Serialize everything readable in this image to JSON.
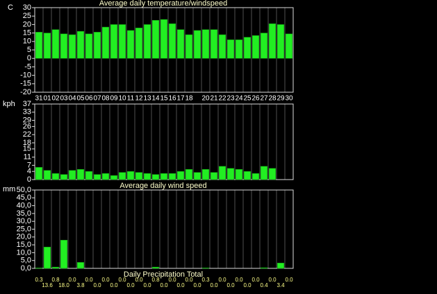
{
  "chart_data": [
    {
      "type": "bar",
      "title": "Average daily temperature/windspeed",
      "y_label": "C",
      "categories": [
        "31",
        "01",
        "02",
        "03",
        "04",
        "05",
        "06",
        "07",
        "08",
        "09",
        "10",
        "11",
        "12",
        "13",
        "14",
        "15",
        "16",
        "17",
        "18",
        null,
        "20",
        "21",
        "22",
        "23",
        "24",
        "25",
        "26",
        "27",
        "28",
        "29",
        "30"
      ],
      "values": [
        15.5,
        15,
        17,
        14.5,
        14,
        16,
        14.5,
        15.5,
        18.5,
        20,
        20,
        16.5,
        18,
        20,
        22.5,
        23,
        20.5,
        17,
        14,
        16.5,
        17,
        17,
        14,
        11,
        11,
        12.5,
        13.5,
        15,
        20.5,
        20,
        14.5
      ],
      "color": "#22ee22",
      "ylim": [
        -20,
        30
      ],
      "yticks": [
        -20,
        -15,
        -10,
        -5,
        0,
        5,
        10,
        15,
        20,
        25,
        30
      ]
    },
    {
      "type": "bar",
      "title": "Average daily wind speed",
      "y_label": "kph",
      "values": [
        6,
        4.5,
        3,
        2.5,
        4.5,
        5,
        4,
        2.5,
        3,
        2,
        3.5,
        4,
        3.5,
        3,
        2.5,
        3,
        3,
        4,
        5,
        3.5,
        5,
        3.5,
        6.5,
        5.5,
        5,
        4,
        3,
        6.5,
        5.5,
        null,
        null
      ],
      "color": "#22ee22",
      "ylim": [
        0,
        37
      ],
      "yticks": [
        0,
        4,
        7,
        11,
        15,
        18,
        22,
        26,
        29,
        33,
        37
      ]
    },
    {
      "type": "bar",
      "title": "Daily Precipitation Total",
      "y_label": "mm",
      "values": [
        0.3,
        13.6,
        0.8,
        18.0,
        0,
        3.8,
        0,
        0,
        0,
        0,
        0,
        0,
        0,
        0,
        0.8,
        0,
        0,
        0,
        0,
        0,
        0.3,
        0,
        0,
        0,
        0,
        0,
        0,
        0.4,
        0,
        3.4,
        0
      ],
      "value_labels": [
        "0.3",
        "13.6",
        "0.8",
        "18.0",
        "0.0",
        "3.8",
        "0.0",
        "0.0",
        "0.0",
        "0.0",
        "0.0",
        "0.0",
        "0.0",
        "0.0",
        "0.8",
        "0.0",
        "0.0",
        "0.0",
        "0.0",
        "0.0",
        "0.3",
        "0.0",
        "0.0",
        "0.0",
        "0.0",
        "0.0",
        "0.0",
        "0.4",
        "0.0",
        "3.4",
        "0.0"
      ],
      "color": "#22ee22",
      "ylim": [
        0,
        50
      ],
      "yticks": [
        {
          "value": 0,
          "label": "0,0"
        },
        {
          "value": 5,
          "label": "5,0"
        },
        {
          "value": 10,
          "label": "10,0"
        },
        {
          "value": 15,
          "label": "15,0"
        },
        {
          "value": 20,
          "label": "20,0"
        },
        {
          "value": 25,
          "label": "25,0"
        },
        {
          "value": 30,
          "label": "30,0"
        },
        {
          "value": 35,
          "label": "35,0"
        },
        {
          "value": 40,
          "label": "40,0"
        },
        {
          "value": 45,
          "label": "45,0"
        },
        {
          "value": 50,
          "label": "50,0"
        }
      ]
    }
  ]
}
